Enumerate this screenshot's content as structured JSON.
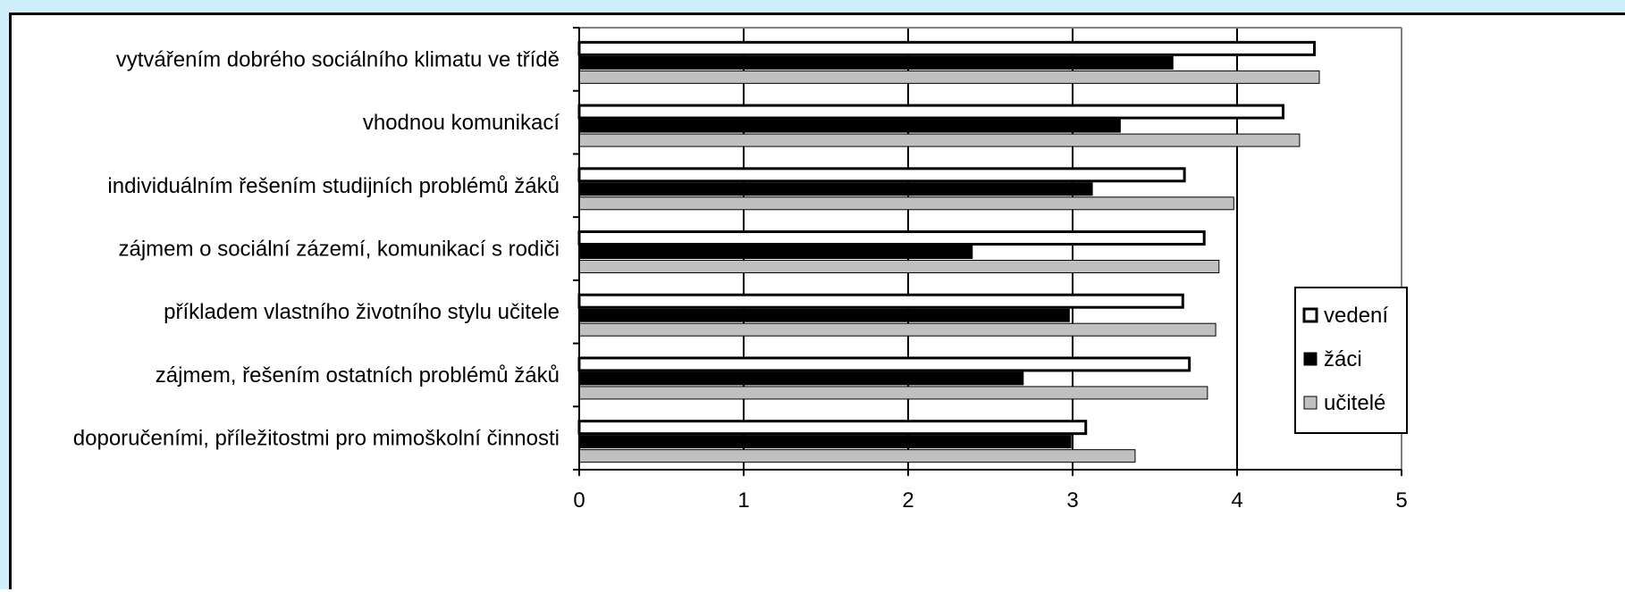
{
  "chart_data": {
    "type": "bar",
    "orientation": "horizontal",
    "categories": [
      "vytvářením dobrého sociálního klimatu ve třídě",
      "vhodnou komunikací",
      "individuálním řešením studijních problémů žáků",
      "zájmem o sociální zázemí, komunikací s rodiči",
      "příkladem vlastního životního stylu učitele",
      "zájmem, řešením ostatních problémů žáků",
      "doporučeními, příležitostmi pro mimoškolní činnosti"
    ],
    "series": [
      {
        "name": "vedení",
        "color": "#ffffff",
        "values": [
          4.47,
          4.28,
          3.68,
          3.8,
          3.67,
          3.71,
          3.08
        ]
      },
      {
        "name": "žáci",
        "color": "#000000",
        "values": [
          3.61,
          3.29,
          3.12,
          2.39,
          2.98,
          2.7,
          2.99
        ]
      },
      {
        "name": "učitelé",
        "color": "#c0c0c0",
        "values": [
          4.5,
          4.38,
          3.98,
          3.89,
          3.87,
          3.82,
          3.38
        ]
      }
    ],
    "x_ticks": [
      "0",
      "1",
      "2",
      "3",
      "4",
      "5"
    ],
    "xlim": [
      0,
      5
    ],
    "title": "",
    "xlabel": "",
    "ylabel": "",
    "grid": "vertical",
    "legend": "right"
  }
}
